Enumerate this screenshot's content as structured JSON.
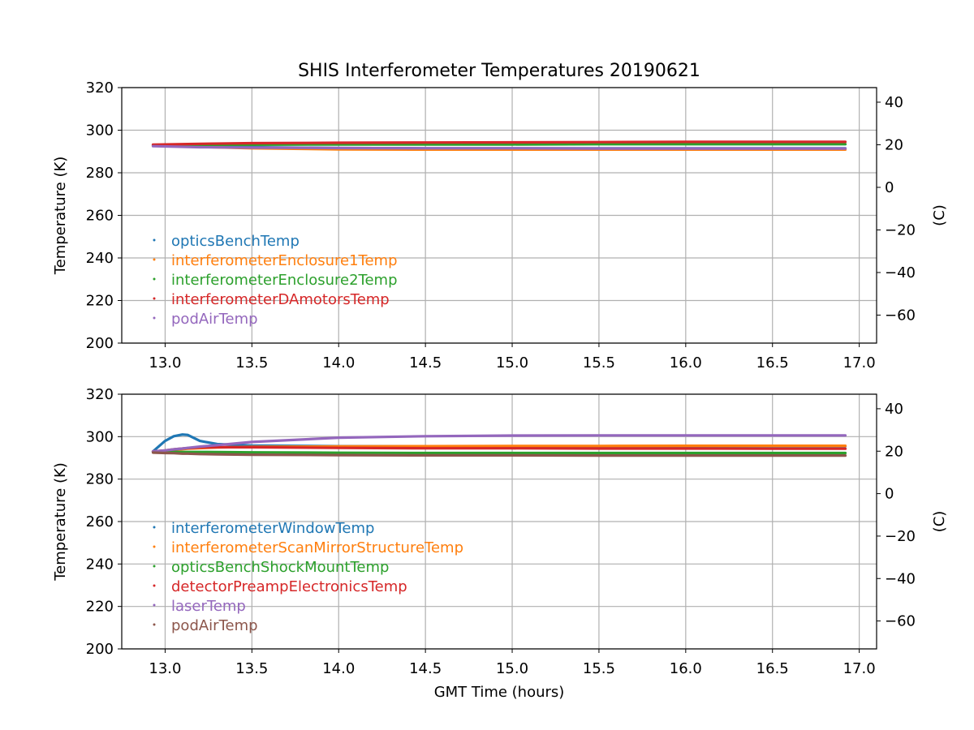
{
  "chart_data": [
    {
      "type": "line",
      "title": "SHIS Interferometer Temperatures 20190621",
      "xlabel": "",
      "ylabel": "Temperature (K)",
      "y2label": "(C)",
      "xlim": [
        12.75,
        17.1
      ],
      "ylim": [
        200,
        320
      ],
      "y2lim": [
        -73.15,
        46.85
      ],
      "xticks": [
        "13.0",
        "13.5",
        "14.0",
        "14.5",
        "15.0",
        "15.5",
        "16.0",
        "16.5",
        "17.0"
      ],
      "xtick_values": [
        13.0,
        13.5,
        14.0,
        14.5,
        15.0,
        15.5,
        16.0,
        16.5,
        17.0
      ],
      "yticks": [
        "200",
        "220",
        "240",
        "260",
        "280",
        "300",
        "320"
      ],
      "ytick_values": [
        200,
        220,
        240,
        260,
        280,
        300,
        320
      ],
      "y2ticks": [
        "−60",
        "−40",
        "−20",
        "0",
        "20",
        "40"
      ],
      "y2tick_values": [
        -60,
        -40,
        -20,
        0,
        20,
        40
      ],
      "grid": true,
      "legend_position": "lower-left",
      "x": [
        12.93,
        13.2,
        13.5,
        14.0,
        14.5,
        15.0,
        15.5,
        16.0,
        16.5,
        16.92
      ],
      "series": [
        {
          "name": "opticsBenchTemp",
          "color": "#1f77b4",
          "values": [
            293.0,
            292.5,
            292.0,
            291.6,
            291.5,
            291.5,
            291.5,
            291.5,
            291.5,
            291.5
          ]
        },
        {
          "name": "interferometerEnclosure1Temp",
          "color": "#ff7f0e",
          "values": [
            292.8,
            292.2,
            291.5,
            291.0,
            290.9,
            290.9,
            290.9,
            290.9,
            290.9,
            290.9
          ]
        },
        {
          "name": "interferometerEnclosure2Temp",
          "color": "#2ca02c",
          "values": [
            293.0,
            293.1,
            293.2,
            293.3,
            293.3,
            293.3,
            293.4,
            293.4,
            293.4,
            293.4
          ]
        },
        {
          "name": "interferometerDAmotorsTemp",
          "color": "#d62728",
          "values": [
            293.2,
            293.6,
            293.9,
            294.1,
            294.2,
            294.3,
            294.4,
            294.5,
            294.5,
            294.5
          ]
        },
        {
          "name": "podAirTemp",
          "color": "#9467bd",
          "values": [
            292.5,
            292.0,
            291.8,
            291.6,
            291.5,
            291.5,
            291.4,
            291.4,
            291.4,
            291.4
          ]
        }
      ]
    },
    {
      "type": "line",
      "title": "",
      "xlabel": "GMT Time (hours)",
      "ylabel": "Temperature (K)",
      "y2label": "(C)",
      "xlim": [
        12.75,
        17.1
      ],
      "ylim": [
        200,
        320
      ],
      "y2lim": [
        -73.15,
        46.85
      ],
      "xticks": [
        "13.0",
        "13.5",
        "14.0",
        "14.5",
        "15.0",
        "15.5",
        "16.0",
        "16.5",
        "17.0"
      ],
      "xtick_values": [
        13.0,
        13.5,
        14.0,
        14.5,
        15.0,
        15.5,
        16.0,
        16.5,
        17.0
      ],
      "yticks": [
        "200",
        "220",
        "240",
        "260",
        "280",
        "300",
        "320"
      ],
      "ytick_values": [
        200,
        220,
        240,
        260,
        280,
        300,
        320
      ],
      "y2ticks": [
        "−60",
        "−40",
        "−20",
        "0",
        "20",
        "40"
      ],
      "y2tick_values": [
        -60,
        -40,
        -20,
        0,
        20,
        40
      ],
      "grid": true,
      "legend_position": "lower-left",
      "x": [
        12.93,
        13.0,
        13.05,
        13.1,
        13.13,
        13.2,
        13.3,
        13.5,
        14.0,
        14.5,
        15.0,
        15.5,
        16.0,
        16.5,
        16.92
      ],
      "series": [
        {
          "name": "interferometerWindowTemp",
          "color": "#1f77b4",
          "values": [
            293.0,
            298.0,
            300.2,
            301.0,
            300.8,
            298.0,
            296.5,
            295.8,
            295.5,
            295.5,
            295.5,
            295.5,
            295.5,
            295.5,
            295.5
          ]
        },
        {
          "name": "interferometerScanMirrorStructureTemp",
          "color": "#ff7f0e",
          "values": [
            293.0,
            293.4,
            293.8,
            294.1,
            294.3,
            294.6,
            294.9,
            295.2,
            295.4,
            295.5,
            295.6,
            295.6,
            295.7,
            295.7,
            295.7
          ]
        },
        {
          "name": "opticsBenchShockMountTemp",
          "color": "#2ca02c",
          "values": [
            292.8,
            292.8,
            292.8,
            292.8,
            292.8,
            292.8,
            292.7,
            292.6,
            292.4,
            292.3,
            292.3,
            292.3,
            292.3,
            292.3,
            292.3
          ]
        },
        {
          "name": "detectorPreampElectronicsTemp",
          "color": "#d62728",
          "values": [
            293.0,
            293.5,
            294.0,
            294.4,
            294.6,
            294.9,
            295.0,
            295.0,
            294.7,
            294.5,
            294.5,
            294.4,
            294.4,
            294.3,
            294.3
          ]
        },
        {
          "name": "laserTemp",
          "color": "#9467bd",
          "values": [
            293.0,
            293.5,
            294.0,
            294.4,
            294.7,
            295.3,
            296.0,
            297.5,
            299.5,
            300.2,
            300.5,
            300.6,
            300.6,
            300.6,
            300.6
          ]
        },
        {
          "name": "podAirTemp",
          "color": "#8c564b",
          "values": [
            292.5,
            292.3,
            292.2,
            292.0,
            292.0,
            291.8,
            291.7,
            291.5,
            291.3,
            291.2,
            291.2,
            291.1,
            291.1,
            291.1,
            291.1
          ]
        }
      ]
    }
  ]
}
